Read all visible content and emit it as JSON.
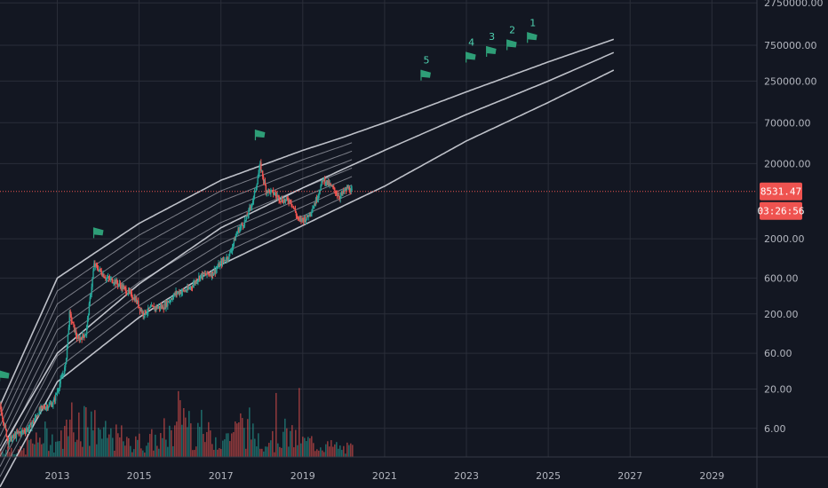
{
  "chart_data": {
    "type": "line",
    "title": "",
    "xlabel": "",
    "ylabel": "",
    "y_scale": "log",
    "grid": true,
    "x_ticks": [
      "2013",
      "2015",
      "2017",
      "2019",
      "2021",
      "2023",
      "2025",
      "2027",
      "2029"
    ],
    "y_ticks": [
      "2750000.00",
      "750000.00",
      "250000.00",
      "70000.00",
      "20000.00",
      "2000.00",
      "600.00",
      "200.00",
      "60.00",
      "20.00",
      "6.00"
    ],
    "xlim": [
      2011.6,
      2030.1
    ],
    "ylim": [
      2.5,
      3000000
    ],
    "current_price": {
      "value": 8531.47,
      "label": "8531.47",
      "countdown": "03:26:56"
    },
    "colors": {
      "background": "#131722",
      "grid": "#2a2e39",
      "up": "#26a69a",
      "down": "#ef5350",
      "bands": "#d1d4dc",
      "flag": "#2e9e77",
      "flag_label": "#4fd1b0",
      "price_line": "#ef5350"
    },
    "bands_outer": {
      "anchors_years": [
        2011.6,
        2013,
        2015,
        2017,
        2019,
        2020,
        2021,
        2023,
        2025,
        2026.6
      ],
      "upper": [
        12,
        600,
        3200,
        12000,
        30000,
        45000,
        70000,
        180000,
        450000,
        900000
      ],
      "middle": [
        3,
        60,
        500,
        2800,
        9500,
        17000,
        30000,
        90000,
        250000,
        600000
      ],
      "lower": [
        1,
        25,
        180,
        900,
        3000,
        5500,
        10000,
        40000,
        130000,
        350000
      ]
    },
    "inner_band_count": 7,
    "flags": [
      {
        "label": "",
        "year": 2011.7,
        "value": 30
      },
      {
        "label": "",
        "year": 2014.0,
        "value": 2400
      },
      {
        "label": "",
        "year": 2017.95,
        "value": 48000
      },
      {
        "label": "5",
        "year": 2022.0,
        "value": 300000
      },
      {
        "label": "4",
        "year": 2023.1,
        "value": 520000
      },
      {
        "label": "3",
        "year": 2023.6,
        "value": 620000
      },
      {
        "label": "2",
        "year": 2024.1,
        "value": 760000
      },
      {
        "label": "1",
        "year": 2024.6,
        "value": 950000
      }
    ],
    "price_path": [
      [
        2011.6,
        12
      ],
      [
        2011.8,
        4
      ],
      [
        2012.0,
        5
      ],
      [
        2012.3,
        6
      ],
      [
        2012.6,
        11
      ],
      [
        2012.9,
        13
      ],
      [
        2013.2,
        40
      ],
      [
        2013.3,
        200
      ],
      [
        2013.5,
        90
      ],
      [
        2013.7,
        110
      ],
      [
        2013.9,
        900
      ],
      [
        2014.0,
        800
      ],
      [
        2014.2,
        600
      ],
      [
        2014.4,
        550
      ],
      [
        2014.6,
        450
      ],
      [
        2014.9,
        320
      ],
      [
        2015.1,
        200
      ],
      [
        2015.3,
        240
      ],
      [
        2015.6,
        250
      ],
      [
        2015.9,
        380
      ],
      [
        2016.2,
        420
      ],
      [
        2016.5,
        650
      ],
      [
        2016.8,
        700
      ],
      [
        2017.0,
        950
      ],
      [
        2017.2,
        1200
      ],
      [
        2017.4,
        2500
      ],
      [
        2017.6,
        3500
      ],
      [
        2017.8,
        7000
      ],
      [
        2017.96,
        19000
      ],
      [
        2018.1,
        9000
      ],
      [
        2018.3,
        8000
      ],
      [
        2018.5,
        6500
      ],
      [
        2018.7,
        6500
      ],
      [
        2018.9,
        3500
      ],
      [
        2019.1,
        3800
      ],
      [
        2019.3,
        6000
      ],
      [
        2019.5,
        12500
      ],
      [
        2019.7,
        9800
      ],
      [
        2019.9,
        7300
      ],
      [
        2020.1,
        9500
      ],
      [
        2020.2,
        8531
      ]
    ],
    "volume_profile": [
      0.2,
      0.15,
      0.35,
      0.5,
      0.4,
      0.6,
      0.9,
      0.7,
      0.5,
      0.45,
      0.3,
      0.35,
      0.4,
      0.55,
      1.0,
      0.65,
      0.5,
      0.45,
      0.6,
      0.7,
      0.5,
      0.4,
      0.55,
      0.45,
      0.35,
      0.3,
      0.25,
      0.2
    ]
  }
}
